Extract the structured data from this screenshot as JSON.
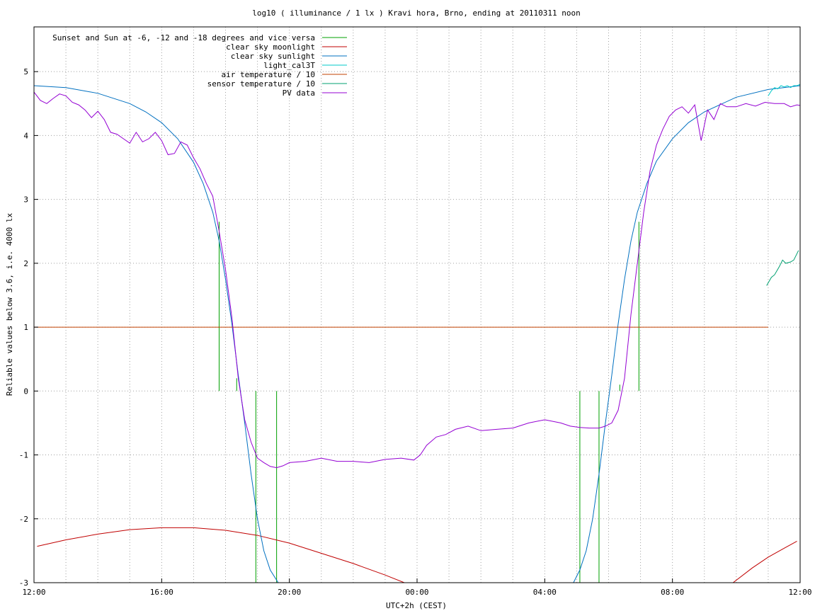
{
  "chart_data": {
    "type": "line",
    "title": "log10 ( illuminance / 1 lx ) Kravi hora, Brno, ending at 20110311 noon",
    "xlabel": "UTC+2h (CEST)",
    "ylabel": "Reliable values below 3.6, i.e. 4000 lx",
    "xlim": [
      12,
      36
    ],
    "ylim": [
      -3,
      5.7
    ],
    "x_ticks": [
      {
        "value": 12,
        "label": "12:00"
      },
      {
        "value": 16,
        "label": "16:00"
      },
      {
        "value": 20,
        "label": "20:00"
      },
      {
        "value": 24,
        "label": "00:00"
      },
      {
        "value": 28,
        "label": "04:00"
      },
      {
        "value": 32,
        "label": "08:00"
      },
      {
        "value": 36,
        "label": "12:00"
      }
    ],
    "y_ticks": [
      {
        "value": -3,
        "label": "-3"
      },
      {
        "value": -2,
        "label": "-2"
      },
      {
        "value": -1,
        "label": "-1"
      },
      {
        "value": 0,
        "label": "0"
      },
      {
        "value": 1,
        "label": "1"
      },
      {
        "value": 2,
        "label": "2"
      },
      {
        "value": 3,
        "label": "3"
      },
      {
        "value": 4,
        "label": "4"
      },
      {
        "value": 5,
        "label": "5"
      }
    ],
    "grid": true,
    "legend_position": "top-left",
    "series": [
      {
        "name": "Sunset and Sun at -6, -12 and -18 degrees and vice versa",
        "color": "#00a000",
        "style": "vlines",
        "lines": [
          [
            17.8,
            0,
            2.65
          ],
          [
            18.35,
            0,
            0.2
          ],
          [
            18.95,
            -3,
            0
          ],
          [
            19.6,
            -3,
            0
          ],
          [
            29.1,
            -3,
            0
          ],
          [
            29.7,
            -3,
            0
          ],
          [
            30.35,
            0,
            0.1
          ],
          [
            30.95,
            0,
            2.65
          ]
        ]
      },
      {
        "name": "clear sky moonlight",
        "color": "#c00000",
        "style": "line",
        "x": [
          12.1,
          13,
          14,
          15,
          16,
          17,
          18,
          19,
          20,
          21,
          22,
          23,
          23.6
        ],
        "y": [
          -2.43,
          -2.33,
          -2.24,
          -2.17,
          -2.14,
          -2.14,
          -2.18,
          -2.26,
          -2.38,
          -2.54,
          -2.7,
          -2.88,
          -3.0
        ],
        "x2": [
          33.9,
          34.5,
          35,
          35.5,
          35.9
        ],
        "y2": [
          -3.0,
          -2.77,
          -2.6,
          -2.46,
          -2.35
        ]
      },
      {
        "name": "clear sky sunlight",
        "color": "#0070c0",
        "style": "line",
        "x": [
          12.0,
          13.0,
          14.0,
          15.0,
          15.5,
          16.0,
          16.5,
          17.0,
          17.3,
          17.6,
          17.8,
          18.0,
          18.2,
          18.4,
          18.6,
          18.8,
          19.0,
          19.2,
          19.4,
          19.65,
          28.9,
          29.1,
          29.3,
          29.5,
          29.7,
          29.9,
          30.1,
          30.3,
          30.5,
          30.7,
          30.9,
          31.2,
          31.5,
          32.0,
          32.5,
          33.0,
          34.0,
          35.0,
          36.0
        ],
        "y": [
          4.78,
          4.75,
          4.66,
          4.5,
          4.37,
          4.2,
          3.95,
          3.58,
          3.25,
          2.8,
          2.35,
          1.75,
          1.05,
          0.25,
          -0.5,
          -1.3,
          -2.0,
          -2.5,
          -2.8,
          -3.0,
          -3.0,
          -2.8,
          -2.5,
          -2.0,
          -1.3,
          -0.5,
          0.25,
          1.05,
          1.75,
          2.35,
          2.8,
          3.25,
          3.6,
          3.95,
          4.2,
          4.37,
          4.6,
          4.72,
          4.78
        ]
      },
      {
        "name": "light_cal3T",
        "color": "#00c8c8",
        "style": "line",
        "x": [
          35.0,
          35.1,
          35.2,
          35.3,
          35.4,
          35.5,
          35.6,
          35.7,
          35.8,
          35.9,
          36.0
        ],
        "y": [
          4.62,
          4.7,
          4.75,
          4.73,
          4.78,
          4.76,
          4.78,
          4.75,
          4.78,
          4.78,
          4.8
        ]
      },
      {
        "name": "air temperature / 10",
        "color": "#c04000",
        "style": "line",
        "x": [
          12.0,
          35.0
        ],
        "y": [
          1.0,
          1.0
        ]
      },
      {
        "name": "sensor temperature / 10",
        "color": "#00a070",
        "style": "line",
        "x": [
          34.95,
          35.1,
          35.2,
          35.35,
          35.45,
          35.55,
          35.7,
          35.8,
          35.9,
          35.95
        ],
        "y": [
          1.65,
          1.78,
          1.82,
          1.95,
          2.05,
          2.0,
          2.02,
          2.05,
          2.15,
          2.2
        ]
      },
      {
        "name": "PV data",
        "color": "#9400d3",
        "style": "line",
        "x": [
          12.0,
          12.2,
          12.4,
          12.6,
          12.8,
          13.0,
          13.2,
          13.4,
          13.6,
          13.8,
          14.0,
          14.2,
          14.4,
          14.6,
          14.8,
          15.0,
          15.2,
          15.4,
          15.6,
          15.8,
          16.0,
          16.2,
          16.4,
          16.6,
          16.8,
          17.0,
          17.2,
          17.4,
          17.6,
          17.8,
          18.0,
          18.2,
          18.4,
          18.6,
          18.8,
          19.0,
          19.2,
          19.4,
          19.6,
          19.8,
          20.0,
          20.5,
          21.0,
          21.5,
          22.0,
          22.5,
          23.0,
          23.5,
          23.9,
          24.1,
          24.3,
          24.6,
          24.9,
          25.2,
          25.6,
          26.0,
          26.5,
          27.0,
          27.5,
          28.0,
          28.5,
          28.8,
          29.1,
          29.4,
          29.7,
          29.9,
          30.1,
          30.3,
          30.5,
          30.7,
          30.9,
          31.1,
          31.3,
          31.5,
          31.7,
          31.9,
          32.1,
          32.3,
          32.5,
          32.7,
          32.9,
          33.1,
          33.3,
          33.5,
          33.7,
          34.0,
          34.3,
          34.6,
          34.9,
          35.2,
          35.5,
          35.7,
          35.9,
          36.0
        ],
        "y": [
          4.68,
          4.55,
          4.5,
          4.58,
          4.65,
          4.62,
          4.52,
          4.48,
          4.4,
          4.28,
          4.38,
          4.25,
          4.05,
          4.02,
          3.95,
          3.88,
          4.05,
          3.9,
          3.95,
          4.05,
          3.92,
          3.7,
          3.72,
          3.9,
          3.85,
          3.65,
          3.48,
          3.25,
          3.05,
          2.5,
          1.9,
          1.15,
          0.2,
          -0.45,
          -0.8,
          -1.05,
          -1.12,
          -1.18,
          -1.2,
          -1.17,
          -1.12,
          -1.1,
          -1.05,
          -1.1,
          -1.1,
          -1.12,
          -1.07,
          -1.05,
          -1.08,
          -1.0,
          -0.85,
          -0.72,
          -0.68,
          -0.6,
          -0.55,
          -0.62,
          -0.6,
          -0.58,
          -0.5,
          -0.45,
          -0.5,
          -0.55,
          -0.57,
          -0.58,
          -0.58,
          -0.55,
          -0.5,
          -0.3,
          0.2,
          1.2,
          2.0,
          2.8,
          3.45,
          3.85,
          4.1,
          4.3,
          4.4,
          4.45,
          4.35,
          4.48,
          3.92,
          4.4,
          4.25,
          4.5,
          4.45,
          4.45,
          4.5,
          4.46,
          4.52,
          4.5,
          4.5,
          4.45,
          4.48,
          4.47
        ]
      }
    ]
  }
}
